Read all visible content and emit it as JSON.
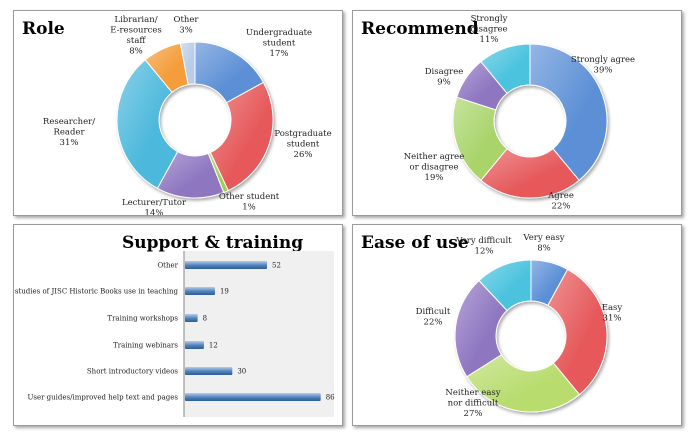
{
  "chart_data": [
    {
      "id": "role",
      "type": "pie",
      "variant": "doughnut",
      "title": "Role",
      "unit": "%",
      "categories": [
        "Undergraduate student",
        "Postgraduate student",
        "Other student",
        "Lecturer/Tutor",
        "Researcher/ Reader",
        "Librarian/ E-resources staff",
        "Other"
      ],
      "values": [
        17,
        26,
        1,
        14,
        31,
        8,
        3
      ],
      "colors": [
        "#5b8fd6",
        "#e6585a",
        "#9fce5a",
        "#8e76c1",
        "#4cb8dc",
        "#f59d3b",
        "#b9cdea"
      ],
      "labels": [
        [
          "Undergraduate",
          "student",
          "17%"
        ],
        [
          "Postgraduate",
          "student",
          "26%"
        ],
        [
          "Other student",
          "1%"
        ],
        [
          "Lecturer/Tutor",
          "14%"
        ],
        [
          "Researcher/",
          "Reader",
          "31%"
        ],
        [
          "Librarian/",
          "E-resources",
          "staff",
          "8%"
        ],
        [
          "Other",
          "3%"
        ]
      ]
    },
    {
      "id": "recommend",
      "type": "pie",
      "variant": "doughnut",
      "title": "Recommend",
      "unit": "%",
      "categories": [
        "Strongly agree",
        "Agree",
        "Neither agree or disagree",
        "Disagree",
        "Strongly disagree"
      ],
      "values": [
        39,
        22,
        19,
        9,
        11
      ],
      "colors": [
        "#5b8fd6",
        "#e6585a",
        "#a8d46a",
        "#8e76c1",
        "#4cc3df"
      ],
      "labels": [
        [
          "Strongly agree",
          "39%"
        ],
        [
          "Agree",
          "22%"
        ],
        [
          "Neither agree",
          "or disagree",
          "19%"
        ],
        [
          "Disagree",
          "9%"
        ],
        [
          "Strongly",
          "disagree",
          "11%"
        ]
      ]
    },
    {
      "id": "support",
      "type": "bar",
      "orientation": "horizontal",
      "title": "Support & training",
      "categories": [
        "Other",
        "Case studies of JISC Historic Books use in teaching",
        "Training workshops",
        "Training webinars",
        "Short introductory videos",
        "User guides/improved help text and pages"
      ],
      "values": [
        52,
        19,
        8,
        12,
        30,
        86
      ],
      "xlim": [
        0,
        90
      ],
      "colors": {
        "bar": "#4f81bd",
        "bar_light": "#b8cde9"
      }
    },
    {
      "id": "ease",
      "type": "pie",
      "variant": "doughnut",
      "title": "Ease of use",
      "unit": "%",
      "categories": [
        "Very easy",
        "Easy",
        "Neither easy nor difficult",
        "Difficult",
        "Very difficult"
      ],
      "values": [
        8,
        31,
        27,
        22,
        12
      ],
      "colors": [
        "#5b8fd6",
        "#e6585a",
        "#b8dc6e",
        "#8e76c1",
        "#4cc3df"
      ],
      "labels": [
        [
          "Very easy",
          "8%"
        ],
        [
          "Easy",
          "31%"
        ],
        [
          "Neither easy",
          "nor difficult",
          "27%"
        ],
        [
          "Difficult",
          "22%"
        ],
        [
          "Very difficult",
          "12%"
        ]
      ]
    }
  ]
}
